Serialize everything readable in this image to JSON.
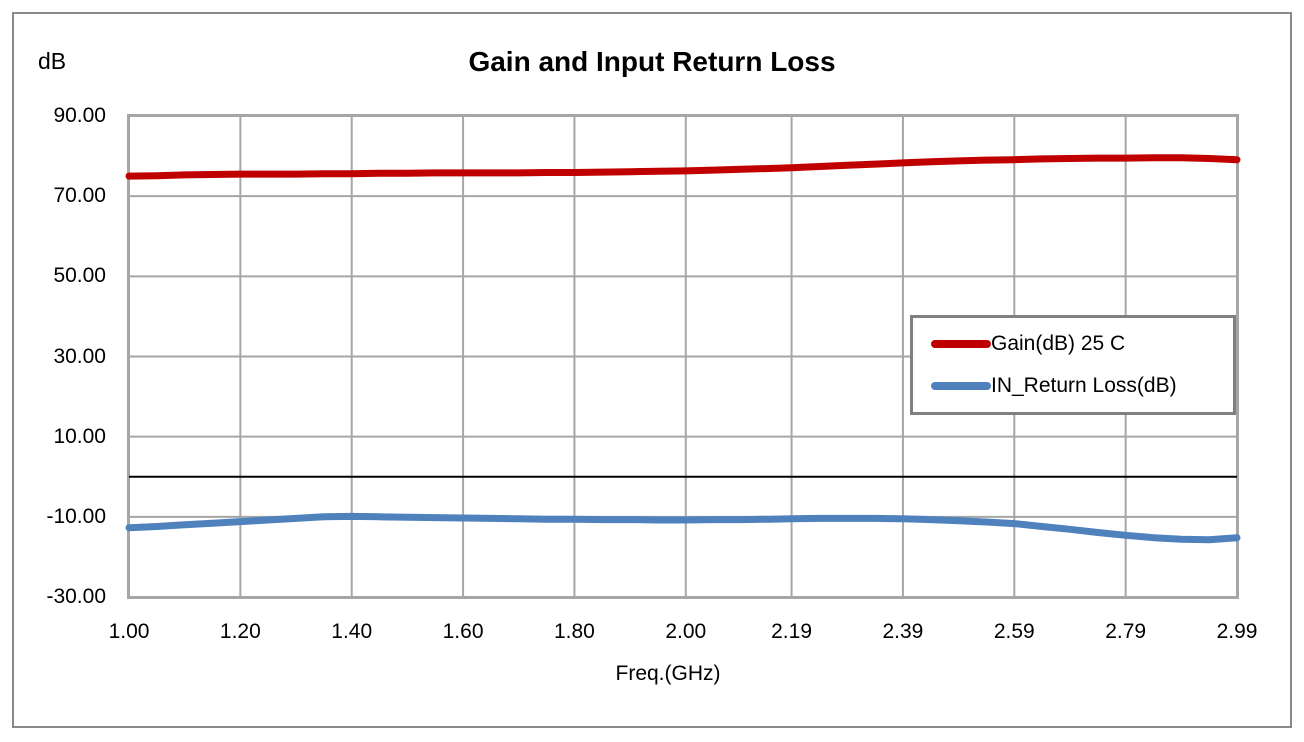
{
  "chart_data": {
    "type": "line",
    "title": "Gain and Input Return Loss",
    "y_axis_unit_label": "dB",
    "xlabel": "Freq.(GHz)",
    "ylabel": "",
    "xlim": [
      1.0,
      2.99
    ],
    "ylim": [
      -30,
      90
    ],
    "grid": true,
    "zero_line": 0,
    "legend_position": "inside-right-middle",
    "x_ticks": [
      "1.00",
      "1.20",
      "1.40",
      "1.60",
      "1.80",
      "2.00",
      "2.19",
      "2.39",
      "2.59",
      "2.79",
      "2.99"
    ],
    "x_tick_values": [
      1.0,
      1.2,
      1.4,
      1.6,
      1.8,
      2.0,
      2.19,
      2.39,
      2.59,
      2.79,
      2.99
    ],
    "y_ticks": [
      "90.00",
      "70.00",
      "50.00",
      "30.00",
      "10.00",
      "-10.00",
      "-30.00"
    ],
    "y_tick_values": [
      90,
      70,
      50,
      30,
      10,
      -10,
      -30
    ],
    "x": [
      1.0,
      1.05,
      1.1,
      1.15,
      1.2,
      1.25,
      1.3,
      1.35,
      1.4,
      1.45,
      1.5,
      1.55,
      1.6,
      1.65,
      1.7,
      1.75,
      1.8,
      1.85,
      1.9,
      1.95,
      2.0,
      2.05,
      2.1,
      2.15,
      2.19,
      2.24,
      2.29,
      2.34,
      2.39,
      2.44,
      2.49,
      2.54,
      2.59,
      2.64,
      2.69,
      2.74,
      2.79,
      2.84,
      2.89,
      2.94,
      2.99
    ],
    "series": [
      {
        "name": "Gain(dB) 25 C",
        "color": "#C00000",
        "values": [
          75.0,
          75.1,
          75.3,
          75.4,
          75.5,
          75.5,
          75.5,
          75.6,
          75.6,
          75.7,
          75.7,
          75.8,
          75.8,
          75.8,
          75.8,
          75.9,
          75.9,
          76.0,
          76.1,
          76.2,
          76.3,
          76.5,
          76.7,
          76.9,
          77.1,
          77.4,
          77.7,
          78.0,
          78.3,
          78.6,
          78.8,
          79.0,
          79.1,
          79.3,
          79.4,
          79.5,
          79.5,
          79.6,
          79.6,
          79.4,
          79.1
        ]
      },
      {
        "name": "IN_Return Loss(dB)",
        "color": "#4F81BD",
        "values": [
          -12.7,
          -12.4,
          -12.0,
          -11.6,
          -11.2,
          -10.8,
          -10.4,
          -10.0,
          -9.9,
          -10.0,
          -10.1,
          -10.2,
          -10.3,
          -10.4,
          -10.5,
          -10.6,
          -10.6,
          -10.7,
          -10.7,
          -10.8,
          -10.8,
          -10.7,
          -10.7,
          -10.6,
          -10.5,
          -10.4,
          -10.4,
          -10.4,
          -10.5,
          -10.7,
          -11.0,
          -11.3,
          -11.7,
          -12.4,
          -13.1,
          -13.9,
          -14.6,
          -15.2,
          -15.6,
          -15.7,
          -15.2
        ]
      }
    ]
  },
  "colors": {
    "gridline": "#A6A6A6",
    "plot_border": "#A6A6A6",
    "outer_border": "#898989",
    "zero_line": "#000000",
    "legend_border": "#808080",
    "gain_series": "#C00000",
    "return_loss_series": "#4F81BD"
  }
}
